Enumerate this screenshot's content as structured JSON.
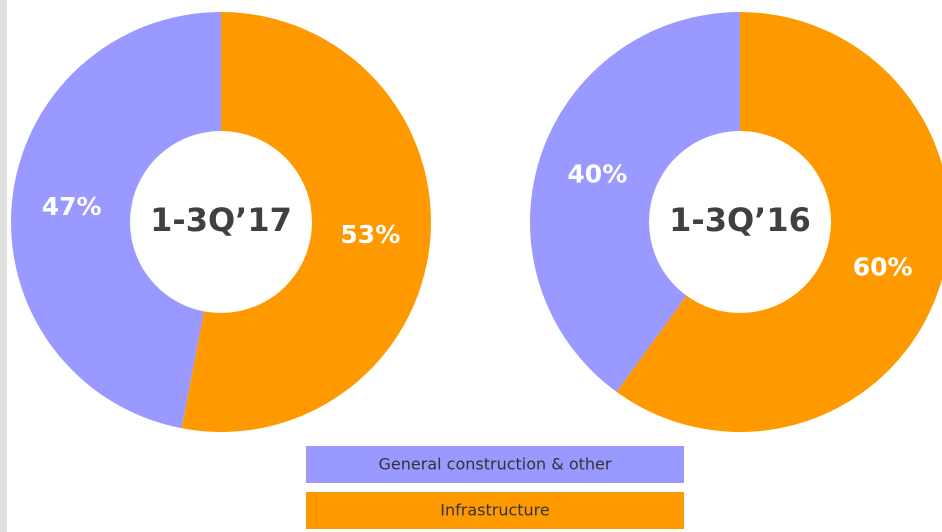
{
  "chart_data": [
    {
      "type": "pie",
      "donut": true,
      "center_label": "1-3Q’17",
      "values": [
        47,
        53
      ],
      "value_labels": [
        "47%",
        "53%"
      ]
    },
    {
      "type": "pie",
      "donut": true,
      "center_label": "1-3Q’16",
      "values": [
        40,
        60
      ],
      "value_labels": [
        "40%",
        "60%"
      ]
    }
  ],
  "legend": {
    "items": [
      {
        "name": "General construction & other",
        "color": "#9999ff"
      },
      {
        "name": "Infrastructure",
        "color": "#ff9900"
      }
    ]
  }
}
